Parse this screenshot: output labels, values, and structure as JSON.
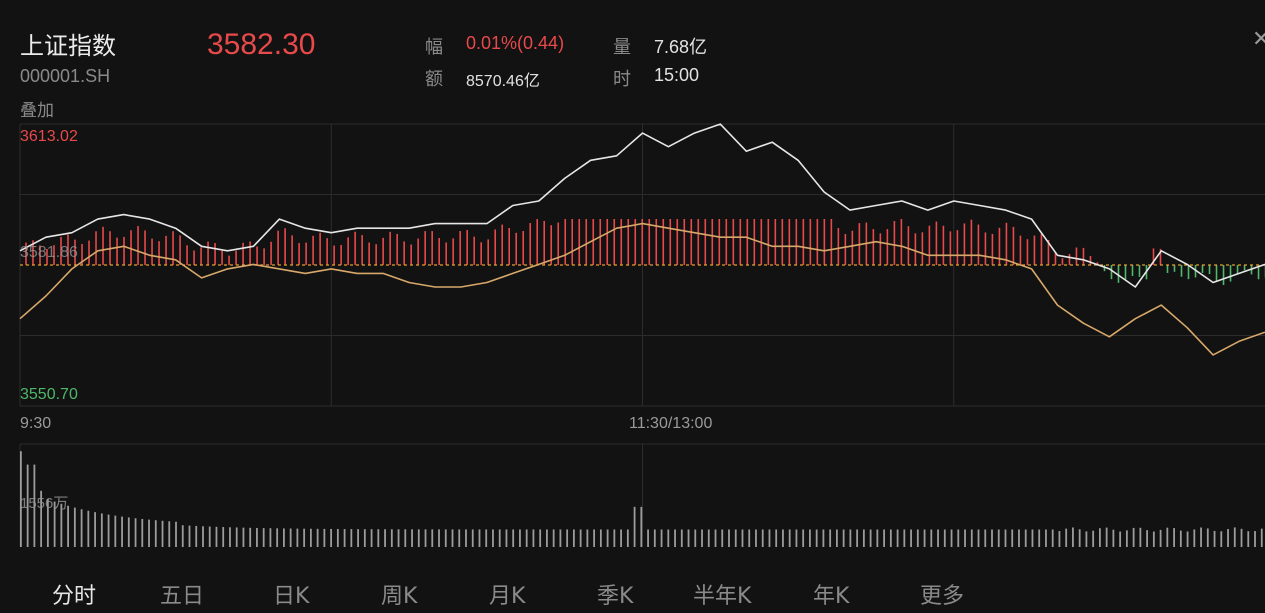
{
  "header": {
    "name": "上证指数",
    "code": "000001.SH",
    "overlay_label": "叠加",
    "price": "3582.30",
    "change_label": "幅",
    "change_value": "0.01%(0.44)",
    "volume_label": "量",
    "volume_value": "7.68亿",
    "amount_label": "额",
    "amount_value": "8570.46亿",
    "time_label": "时",
    "time_value": "15:00"
  },
  "axis": {
    "price_max": "3613.02",
    "price_mid": "3581.86",
    "price_min": "3550.70",
    "time_start": "9:30",
    "time_mid": "11:30/13:00",
    "volume_max": "1556万"
  },
  "tabs": [
    "分时",
    "五日",
    "日K",
    "周K",
    "月K",
    "季K",
    "半年K",
    "年K",
    "更多"
  ],
  "active_tab": "分时",
  "colors": {
    "background": "#121212",
    "up": "#e8494a",
    "down": "#4fb86a",
    "price_line": "#e6e6e6",
    "avg_line": "#d8a86a",
    "baseline": "#e0a030",
    "grid": "#2c2c2c",
    "volume_bar": "#9c9c9c"
  },
  "chart_data": {
    "type": "line",
    "title": "上证指数",
    "xlabel": "",
    "ylabel": "",
    "x_ticks": [
      "9:30",
      "11:30/13:00"
    ],
    "ylim": [
      3550.7,
      3613.02
    ],
    "baseline": 3581.86,
    "series": [
      {
        "color": "#e6e6e6",
        "x": [
          0,
          5,
          10,
          15,
          20,
          25,
          30,
          35,
          40,
          45,
          50,
          55,
          60,
          65,
          70,
          75,
          80,
          85,
          90,
          95,
          100,
          105,
          110,
          115,
          120,
          125,
          130,
          135,
          140,
          145,
          150,
          155,
          160,
          165,
          170,
          175,
          180,
          185,
          190,
          195,
          200,
          205,
          210,
          215,
          220,
          225,
          230,
          235,
          240
        ],
        "values": [
          3585,
          3588,
          3589,
          3592,
          3593,
          3592,
          3590,
          3586,
          3585,
          3586,
          3592,
          3590,
          3589,
          3590,
          3590,
          3590,
          3591,
          3591,
          3591,
          3595,
          3596,
          3601,
          3605,
          3606,
          3611,
          3608,
          3611,
          3613,
          3607,
          3609,
          3605,
          3598,
          3594,
          3595,
          3596,
          3594,
          3596,
          3595,
          3594,
          3592,
          3584,
          3583,
          3581,
          3577,
          3585,
          3582,
          3578,
          3580,
          3582
        ]
      },
      {
        "color": "#d8a86a",
        "x": [
          0,
          5,
          10,
          15,
          20,
          25,
          30,
          35,
          40,
          45,
          50,
          55,
          60,
          65,
          70,
          75,
          80,
          85,
          90,
          95,
          100,
          105,
          110,
          115,
          120,
          125,
          130,
          135,
          140,
          145,
          150,
          155,
          160,
          165,
          170,
          175,
          180,
          185,
          190,
          195,
          200,
          205,
          210,
          215,
          220,
          225,
          230,
          235,
          240
        ],
        "values": [
          3570,
          3575,
          3581,
          3585,
          3586,
          3584,
          3583,
          3579,
          3581,
          3582,
          3581,
          3580,
          3581,
          3580,
          3580,
          3578,
          3577,
          3577,
          3578,
          3580,
          3582,
          3584,
          3587,
          3590,
          3591,
          3590,
          3589,
          3588,
          3588,
          3586,
          3586,
          3585,
          3586,
          3587,
          3586,
          3584,
          3584,
          3584,
          3583,
          3581,
          3573,
          3569,
          3566,
          3570,
          3573,
          3568,
          3562,
          3565,
          3567
        ]
      }
    ]
  }
}
